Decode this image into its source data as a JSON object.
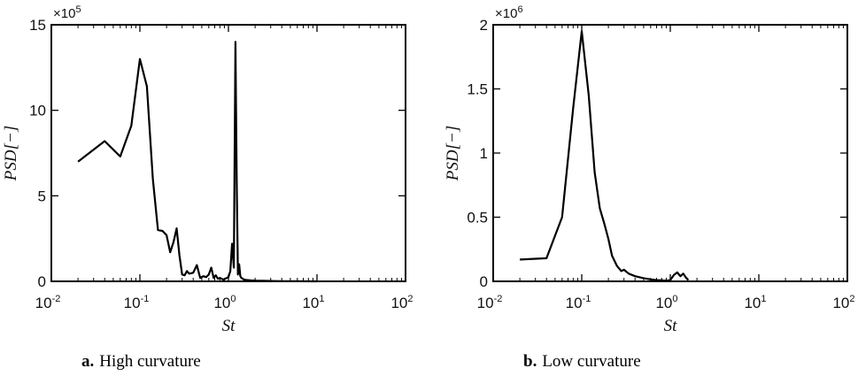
{
  "chart_data": [
    {
      "type": "line",
      "caption_letter": "a.",
      "caption_text": "High curvature",
      "xlabel": "St",
      "ylabel": "PSD[−]",
      "xscale": "log",
      "xlim": [
        0.01,
        100
      ],
      "ylim": [
        0,
        1500000
      ],
      "y_multiplier": "×10",
      "y_multiplier_exp": "5",
      "x_ticks": [
        {
          "base": "10",
          "exp": "-2",
          "value": 0.01
        },
        {
          "base": "10",
          "exp": "-1",
          "value": 0.1
        },
        {
          "base": "10",
          "exp": "0",
          "value": 1
        },
        {
          "base": "10",
          "exp": "1",
          "value": 10
        },
        {
          "base": "10",
          "exp": "2",
          "value": 100
        }
      ],
      "y_ticks": [
        {
          "label": "0",
          "value": 0
        },
        {
          "label": "5",
          "value": 500000
        },
        {
          "label": "10",
          "value": 1000000
        },
        {
          "label": "15",
          "value": 1500000
        }
      ],
      "grid": false,
      "series": [
        {
          "color": "#000000",
          "x": [
            0.02,
            0.04,
            0.06,
            0.08,
            0.1,
            0.12,
            0.14,
            0.16,
            0.18,
            0.2,
            0.22,
            0.24,
            0.26,
            0.28,
            0.3,
            0.32,
            0.34,
            0.36,
            0.4,
            0.44,
            0.48,
            0.52,
            0.56,
            0.6,
            0.64,
            0.68,
            0.72,
            0.76,
            0.8,
            0.84,
            0.88,
            0.92,
            0.96,
            1.0,
            1.05,
            1.1,
            1.15,
            1.2,
            1.24,
            1.28,
            1.32,
            1.36,
            1.4,
            1.45,
            1.5,
            1.6,
            1.8,
            2.0,
            2.5,
            3.0,
            4.0,
            6.0,
            10.0
          ],
          "y": [
            700000,
            820000,
            730000,
            910000,
            1300000,
            1140000,
            600000,
            300000,
            295000,
            270000,
            170000,
            230000,
            310000,
            150000,
            40000,
            35000,
            60000,
            45000,
            50000,
            95000,
            20000,
            30000,
            25000,
            40000,
            80000,
            20000,
            35000,
            15000,
            20000,
            15000,
            10000,
            15000,
            20000,
            25000,
            60000,
            220000,
            80000,
            1400000,
            600000,
            40000,
            100000,
            30000,
            20000,
            15000,
            10000,
            8000,
            5000,
            4000,
            3000,
            2000,
            1000,
            500,
            0
          ]
        }
      ]
    },
    {
      "type": "line",
      "caption_letter": "b.",
      "caption_text": "Low curvature",
      "xlabel": "St",
      "ylabel": "PSD[−]",
      "xscale": "log",
      "xlim": [
        0.01,
        100
      ],
      "ylim": [
        0,
        2000000
      ],
      "y_multiplier": "×10",
      "y_multiplier_exp": "6",
      "x_ticks": [
        {
          "base": "10",
          "exp": "-2",
          "value": 0.01
        },
        {
          "base": "10",
          "exp": "-1",
          "value": 0.1
        },
        {
          "base": "10",
          "exp": "0",
          "value": 1
        },
        {
          "base": "10",
          "exp": "1",
          "value": 10
        },
        {
          "base": "10",
          "exp": "2",
          "value": 100
        }
      ],
      "y_ticks": [
        {
          "label": "0",
          "value": 0
        },
        {
          "label": "0.5",
          "value": 500000
        },
        {
          "label": "1",
          "value": 1000000
        },
        {
          "label": "1.5",
          "value": 1500000
        },
        {
          "label": "2",
          "value": 2000000
        }
      ],
      "grid": false,
      "series": [
        {
          "color": "#000000",
          "x": [
            0.02,
            0.04,
            0.06,
            0.08,
            0.1,
            0.12,
            0.14,
            0.16,
            0.18,
            0.2,
            0.22,
            0.25,
            0.28,
            0.3,
            0.34,
            0.4,
            0.5,
            0.6,
            0.7,
            0.8,
            0.9,
            1.0,
            1.1,
            1.2,
            1.3,
            1.4,
            1.5,
            1.6
          ],
          "y": [
            170000,
            180000,
            500000,
            1350000,
            1950000,
            1450000,
            850000,
            570000,
            450000,
            330000,
            200000,
            120000,
            80000,
            90000,
            60000,
            40000,
            25000,
            15000,
            10000,
            8000,
            5000,
            10000,
            50000,
            70000,
            40000,
            60000,
            30000,
            10000
          ]
        }
      ]
    }
  ]
}
